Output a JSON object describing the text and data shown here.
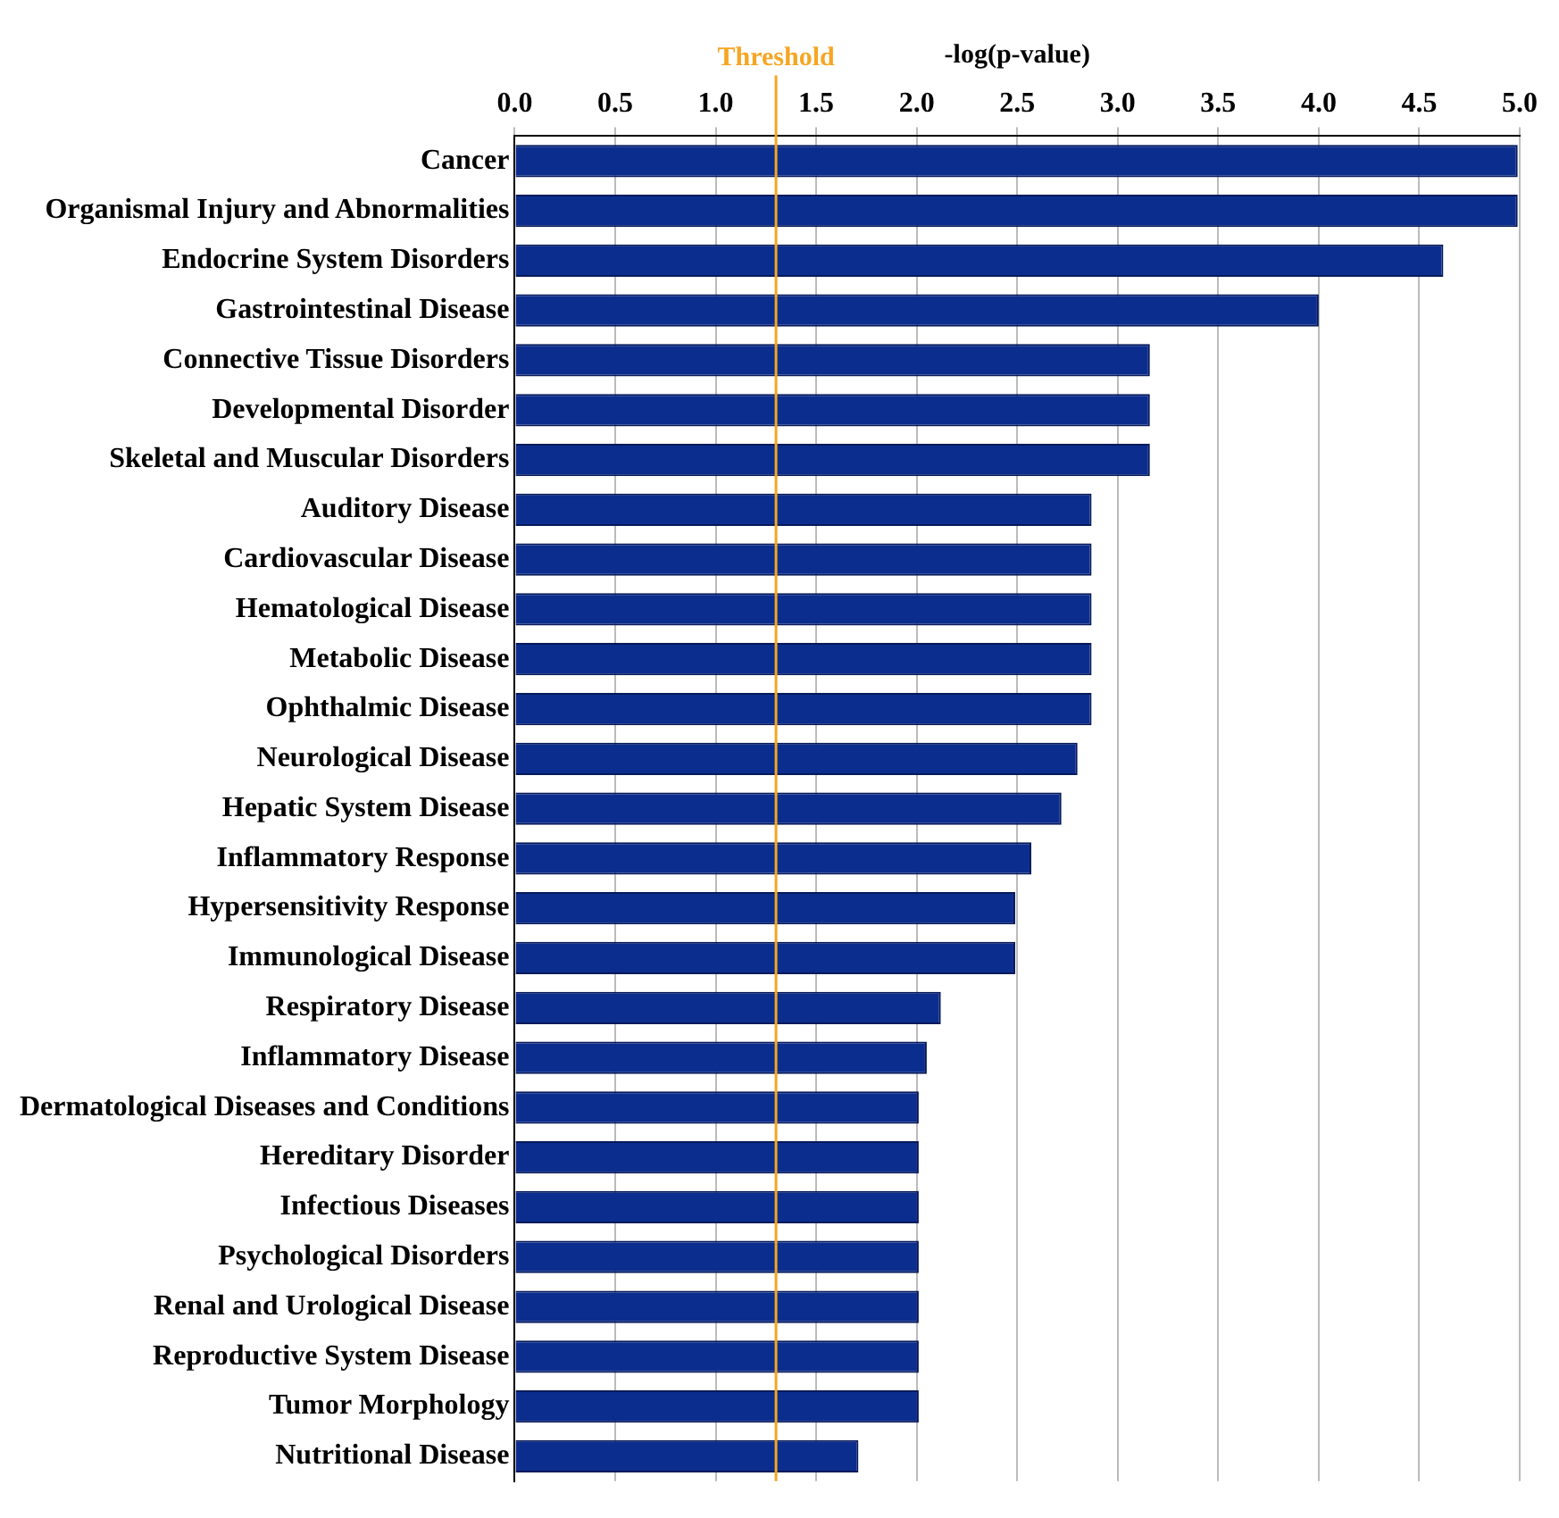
{
  "chart_data": {
    "type": "bar",
    "orientation": "horizontal",
    "xlabel": "-log(p-value)",
    "categories": [
      "Cancer",
      "Organismal Injury and Abnormalities",
      "Endocrine System Disorders",
      "Gastrointestinal Disease",
      "Connective Tissue Disorders",
      "Developmental Disorder",
      "Skeletal and Muscular Disorders",
      "Auditory Disease",
      "Cardiovascular Disease",
      "Hematological Disease",
      "Metabolic Disease",
      "Ophthalmic Disease",
      "Neurological Disease",
      "Hepatic System Disease",
      "Inflammatory Response",
      "Hypersensitivity Response",
      "Immunological Disease",
      "Respiratory Disease",
      "Inflammatory Disease",
      "Dermatological Diseases and Conditions",
      "Hereditary Disorder",
      "Infectious Diseases",
      "Psychological Disorders",
      "Renal and Urological Disease",
      "Reproductive System Disease",
      "Tumor Morphology",
      "Nutritional Disease"
    ],
    "values": [
      4.99,
      4.99,
      4.62,
      4.0,
      3.16,
      3.16,
      3.16,
      2.87,
      2.87,
      2.87,
      2.87,
      2.87,
      2.8,
      2.72,
      2.57,
      2.49,
      2.49,
      2.12,
      2.05,
      2.01,
      2.01,
      2.01,
      2.01,
      2.01,
      2.01,
      2.01,
      1.71
    ],
    "color": "#0b2d8e",
    "xlim": [
      0,
      5
    ],
    "xticks": [
      {
        "value": 0,
        "label": "0.0"
      },
      {
        "value": 0.5,
        "label": "0.5"
      },
      {
        "value": 1,
        "label": "1.0"
      },
      {
        "value": 1.5,
        "label": "1.5"
      },
      {
        "value": 2,
        "label": "2.0"
      },
      {
        "value": 2.5,
        "label": "2.5"
      },
      {
        "value": 3,
        "label": "3.0"
      },
      {
        "value": 3.5,
        "label": "3.5"
      },
      {
        "value": 4,
        "label": "4.0"
      },
      {
        "value": 4.5,
        "label": "4.5"
      },
      {
        "value": 5,
        "label": "5.0"
      }
    ],
    "ref_lines": [
      {
        "axis": "x",
        "value": 1.3,
        "label": "Threshold",
        "color": "#f5a623"
      }
    ],
    "grid": "x",
    "legend": false
  }
}
